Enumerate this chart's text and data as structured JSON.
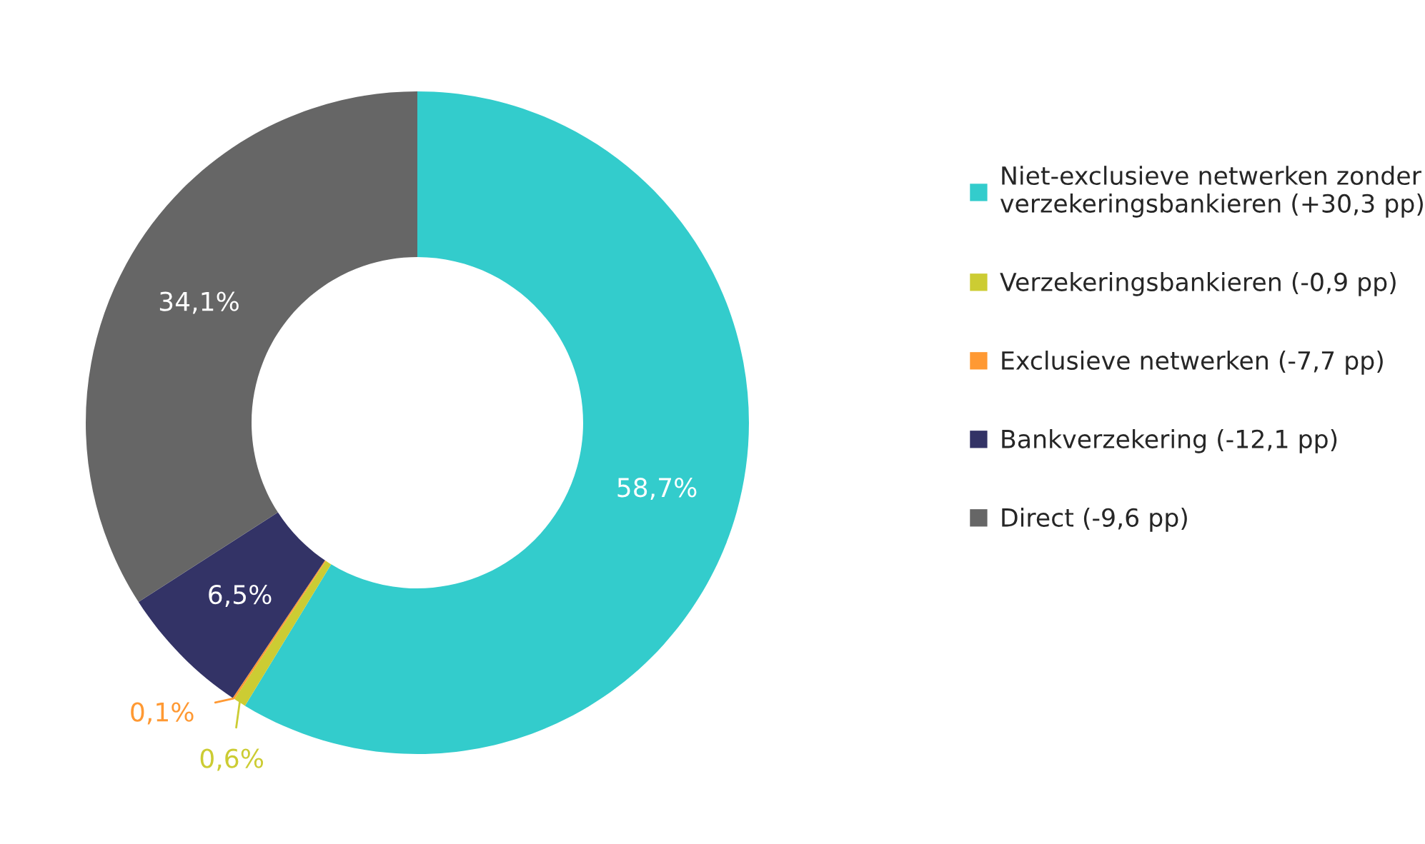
{
  "chart_data": {
    "type": "donut",
    "categories": [
      "Niet-exclusieve netwerken zonder\nverzekeringsbankieren (+30,3 pp)",
      "Verzekeringsbankieren (-0,9 pp)",
      "Exclusieve netwerken (-7,7 pp)",
      "Bankverzekering (-12,1 pp)",
      "Direct (-9,6 pp)"
    ],
    "values": [
      58.7,
      0.6,
      0.1,
      6.5,
      34.1
    ],
    "value_labels": [
      "58,7%",
      "0,6%",
      "0,1%",
      "6,5%",
      "34,1%"
    ],
    "colors": [
      "#33cccc",
      "#cccc33",
      "#ff9933",
      "#333366",
      "#666666"
    ],
    "legend": "right"
  }
}
